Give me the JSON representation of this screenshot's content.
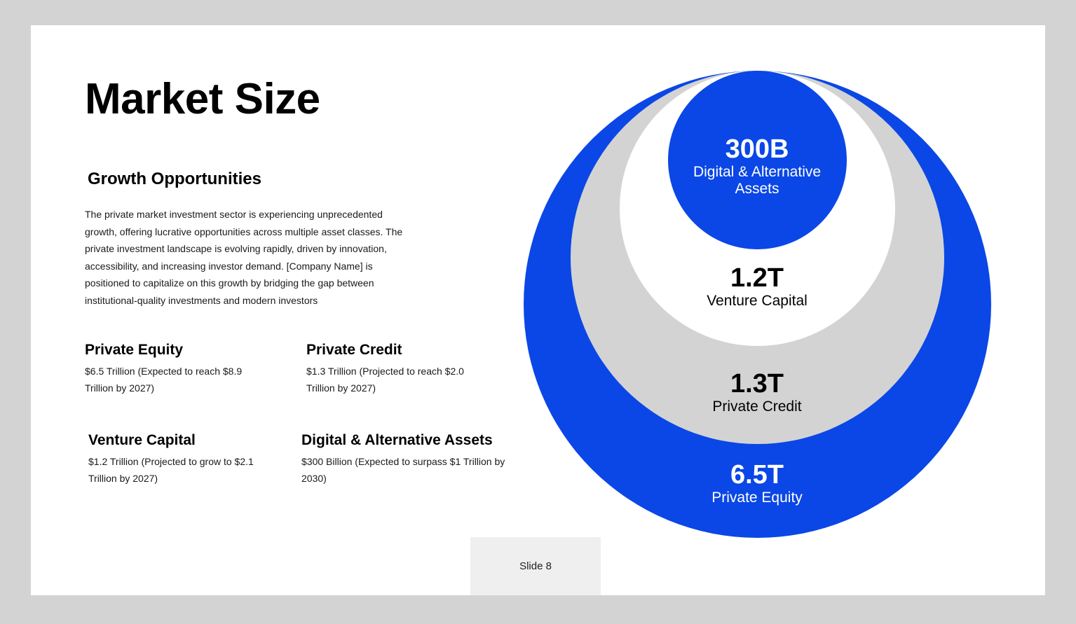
{
  "slide": {
    "title": "Market Size",
    "subheading": "Growth Opportunities",
    "intro": "The private market investment sector is experiencing unprecedented growth, offering lucrative opportunities across multiple asset classes. The private investment landscape is evolving rapidly, driven by innovation, accessibility, and increasing investor demand. [Company Name] is positioned to capitalize on this growth by bridging the gap between institutional-quality investments and modern investors",
    "blocks": [
      {
        "heading": "Private Equity",
        "text": "$6.5 Trillion (Expected to reach $8.9 Trillion by 2027)"
      },
      {
        "heading": "Private Credit",
        "text": "$1.3 Trillion (Projected to reach $2.0 Trillion by 2027)"
      },
      {
        "heading": "Venture Capital",
        "text": "$1.2 Trillion (Projected to grow to $2.1 Trillion by 2027)"
      },
      {
        "heading": "Digital & Alternative Assets",
        "text": "$300 Billion (Expected to surpass $1 Trillion by 2030)"
      }
    ],
    "footer": "Slide 8"
  },
  "circles": {
    "private_equity": {
      "value": "6.5T",
      "label": "Private Equity",
      "color": "#0b47e6"
    },
    "private_credit": {
      "value": "1.3T",
      "label": "Private Credit",
      "color": "#d3d3d3"
    },
    "venture_capital": {
      "value": "1.2T",
      "label": "Venture Capital",
      "color": "#ffffff"
    },
    "digital_alternative": {
      "value": "300B",
      "label": "Digital & Alternative Assets",
      "color": "#0b47e6"
    }
  },
  "colors": {
    "accent": "#0b47e6",
    "background": "#d3d3d3",
    "slide": "#ffffff"
  }
}
